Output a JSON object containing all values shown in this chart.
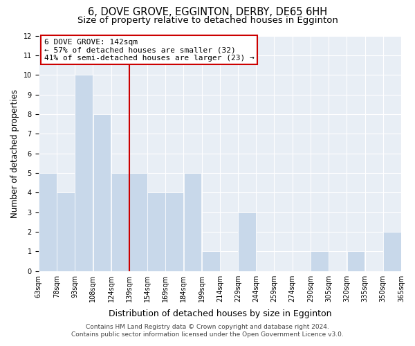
{
  "title": "6, DOVE GROVE, EGGINTON, DERBY, DE65 6HH",
  "subtitle": "Size of property relative to detached houses in Egginton",
  "xlabel": "Distribution of detached houses by size in Egginton",
  "ylabel": "Number of detached properties",
  "tick_labels": [
    "63sqm",
    "78sqm",
    "93sqm",
    "108sqm",
    "124sqm",
    "139sqm",
    "154sqm",
    "169sqm",
    "184sqm",
    "199sqm",
    "214sqm",
    "229sqm",
    "244sqm",
    "259sqm",
    "274sqm",
    "290sqm",
    "305sqm",
    "320sqm",
    "335sqm",
    "350sqm",
    "365sqm"
  ],
  "bar_heights": [
    5,
    4,
    10,
    8,
    5,
    5,
    4,
    4,
    5,
    1,
    0,
    3,
    0,
    0,
    0,
    1,
    0,
    1,
    0,
    2
  ],
  "bar_color": "#c8d8ea",
  "bar_edge_color": "#ffffff",
  "subject_bar_index": 5,
  "subject_line_color": "#cc0000",
  "annotation_title": "6 DOVE GROVE: 142sqm",
  "annotation_line1": "← 57% of detached houses are smaller (32)",
  "annotation_line2": "41% of semi-detached houses are larger (23) →",
  "annotation_box_color": "#ffffff",
  "annotation_box_edge_color": "#cc0000",
  "ylim": [
    0,
    12
  ],
  "yticks": [
    0,
    1,
    2,
    3,
    4,
    5,
    6,
    7,
    8,
    9,
    10,
    11,
    12
  ],
  "plot_bg_color": "#e8eef5",
  "grid_color": "#ffffff",
  "footer_line1": "Contains HM Land Registry data © Crown copyright and database right 2024.",
  "footer_line2": "Contains public sector information licensed under the Open Government Licence v3.0.",
  "title_fontsize": 10.5,
  "subtitle_fontsize": 9.5,
  "xlabel_fontsize": 9,
  "ylabel_fontsize": 8.5,
  "tick_fontsize": 7,
  "annotation_fontsize": 8,
  "footer_fontsize": 6.5
}
